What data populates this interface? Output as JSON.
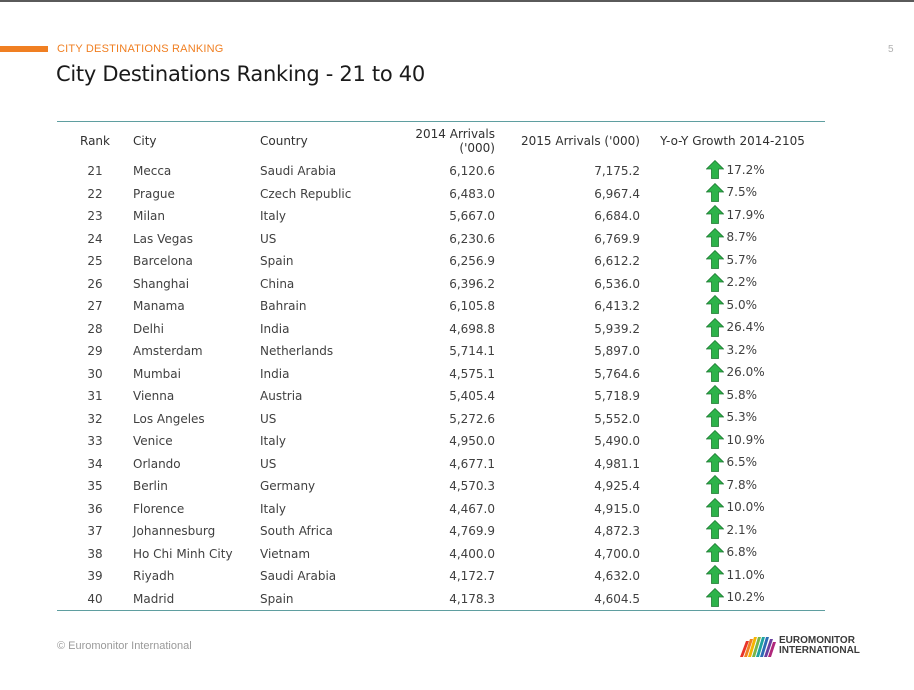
{
  "header": {
    "section_label": "CITY DESTINATIONS RANKING",
    "page_number": "5",
    "title": "City Destinations Ranking - 21 to 40"
  },
  "table": {
    "columns": [
      "Rank",
      "City",
      "Country",
      "2014 Arrivals ('000)",
      "2015 Arrivals ('000)",
      "Y-o-Y Growth 2014-2105"
    ],
    "rows": [
      {
        "rank": "21",
        "city": "Mecca",
        "country": "Saudi Arabia",
        "arrivals_2014": "6,120.6",
        "arrivals_2015": "7,175.2",
        "growth": "17.2%"
      },
      {
        "rank": "22",
        "city": "Prague",
        "country": "Czech Republic",
        "arrivals_2014": "6,483.0",
        "arrivals_2015": "6,967.4",
        "growth": "7.5%"
      },
      {
        "rank": "23",
        "city": "Milan",
        "country": "Italy",
        "arrivals_2014": "5,667.0",
        "arrivals_2015": "6,684.0",
        "growth": "17.9%"
      },
      {
        "rank": "24",
        "city": "Las Vegas",
        "country": "US",
        "arrivals_2014": "6,230.6",
        "arrivals_2015": "6,769.9",
        "growth": "8.7%"
      },
      {
        "rank": "25",
        "city": "Barcelona",
        "country": "Spain",
        "arrivals_2014": "6,256.9",
        "arrivals_2015": "6,612.2",
        "growth": "5.7%"
      },
      {
        "rank": "26",
        "city": "Shanghai",
        "country": "China",
        "arrivals_2014": "6,396.2",
        "arrivals_2015": "6,536.0",
        "growth": "2.2%"
      },
      {
        "rank": "27",
        "city": "Manama",
        "country": "Bahrain",
        "arrivals_2014": "6,105.8",
        "arrivals_2015": "6,413.2",
        "growth": "5.0%"
      },
      {
        "rank": "28",
        "city": "Delhi",
        "country": "India",
        "arrivals_2014": "4,698.8",
        "arrivals_2015": "5,939.2",
        "growth": "26.4%"
      },
      {
        "rank": "29",
        "city": "Amsterdam",
        "country": "Netherlands",
        "arrivals_2014": "5,714.1",
        "arrivals_2015": "5,897.0",
        "growth": "3.2%"
      },
      {
        "rank": "30",
        "city": "Mumbai",
        "country": "India",
        "arrivals_2014": "4,575.1",
        "arrivals_2015": "5,764.6",
        "growth": "26.0%"
      },
      {
        "rank": "31",
        "city": "Vienna",
        "country": "Austria",
        "arrivals_2014": "5,405.4",
        "arrivals_2015": "5,718.9",
        "growth": "5.8%"
      },
      {
        "rank": "32",
        "city": "Los Angeles",
        "country": "US",
        "arrivals_2014": "5,272.6",
        "arrivals_2015": "5,552.0",
        "growth": "5.3%"
      },
      {
        "rank": "33",
        "city": "Venice",
        "country": "Italy",
        "arrivals_2014": "4,950.0",
        "arrivals_2015": "5,490.0",
        "growth": "10.9%"
      },
      {
        "rank": "34",
        "city": "Orlando",
        "country": "US",
        "arrivals_2014": "4,677.1",
        "arrivals_2015": "4,981.1",
        "growth": "6.5%"
      },
      {
        "rank": "35",
        "city": "Berlin",
        "country": "Germany",
        "arrivals_2014": "4,570.3",
        "arrivals_2015": "4,925.4",
        "growth": "7.8%"
      },
      {
        "rank": "36",
        "city": "Florence",
        "country": "Italy",
        "arrivals_2014": "4,467.0",
        "arrivals_2015": "4,915.0",
        "growth": "10.0%"
      },
      {
        "rank": "37",
        "city": "Johannesburg",
        "country": "South Africa",
        "arrivals_2014": "4,769.9",
        "arrivals_2015": "4,872.3",
        "growth": "2.1%"
      },
      {
        "rank": "38",
        "city": "Ho Chi Minh City",
        "country": "Vietnam",
        "arrivals_2014": "4,400.0",
        "arrivals_2015": "4,700.0",
        "growth": "6.8%"
      },
      {
        "rank": "39",
        "city": "Riyadh",
        "country": "Saudi Arabia",
        "arrivals_2014": "4,172.7",
        "arrivals_2015": "4,632.0",
        "growth": "11.0%"
      },
      {
        "rank": "40",
        "city": "Madrid",
        "country": "Spain",
        "arrivals_2014": "4,178.3",
        "arrivals_2015": "4,604.5",
        "growth": "10.2%"
      }
    ],
    "growth_icon": "up-arrow-icon",
    "growth_icon_color": "#2db34a"
  },
  "footer": {
    "copyright": "© Euromonitor International",
    "brand_line1": "EUROMONITOR",
    "brand_line2": "INTERNATIONAL"
  },
  "colors": {
    "accent": "#f07f22",
    "table_rule": "#5f9ea0"
  }
}
